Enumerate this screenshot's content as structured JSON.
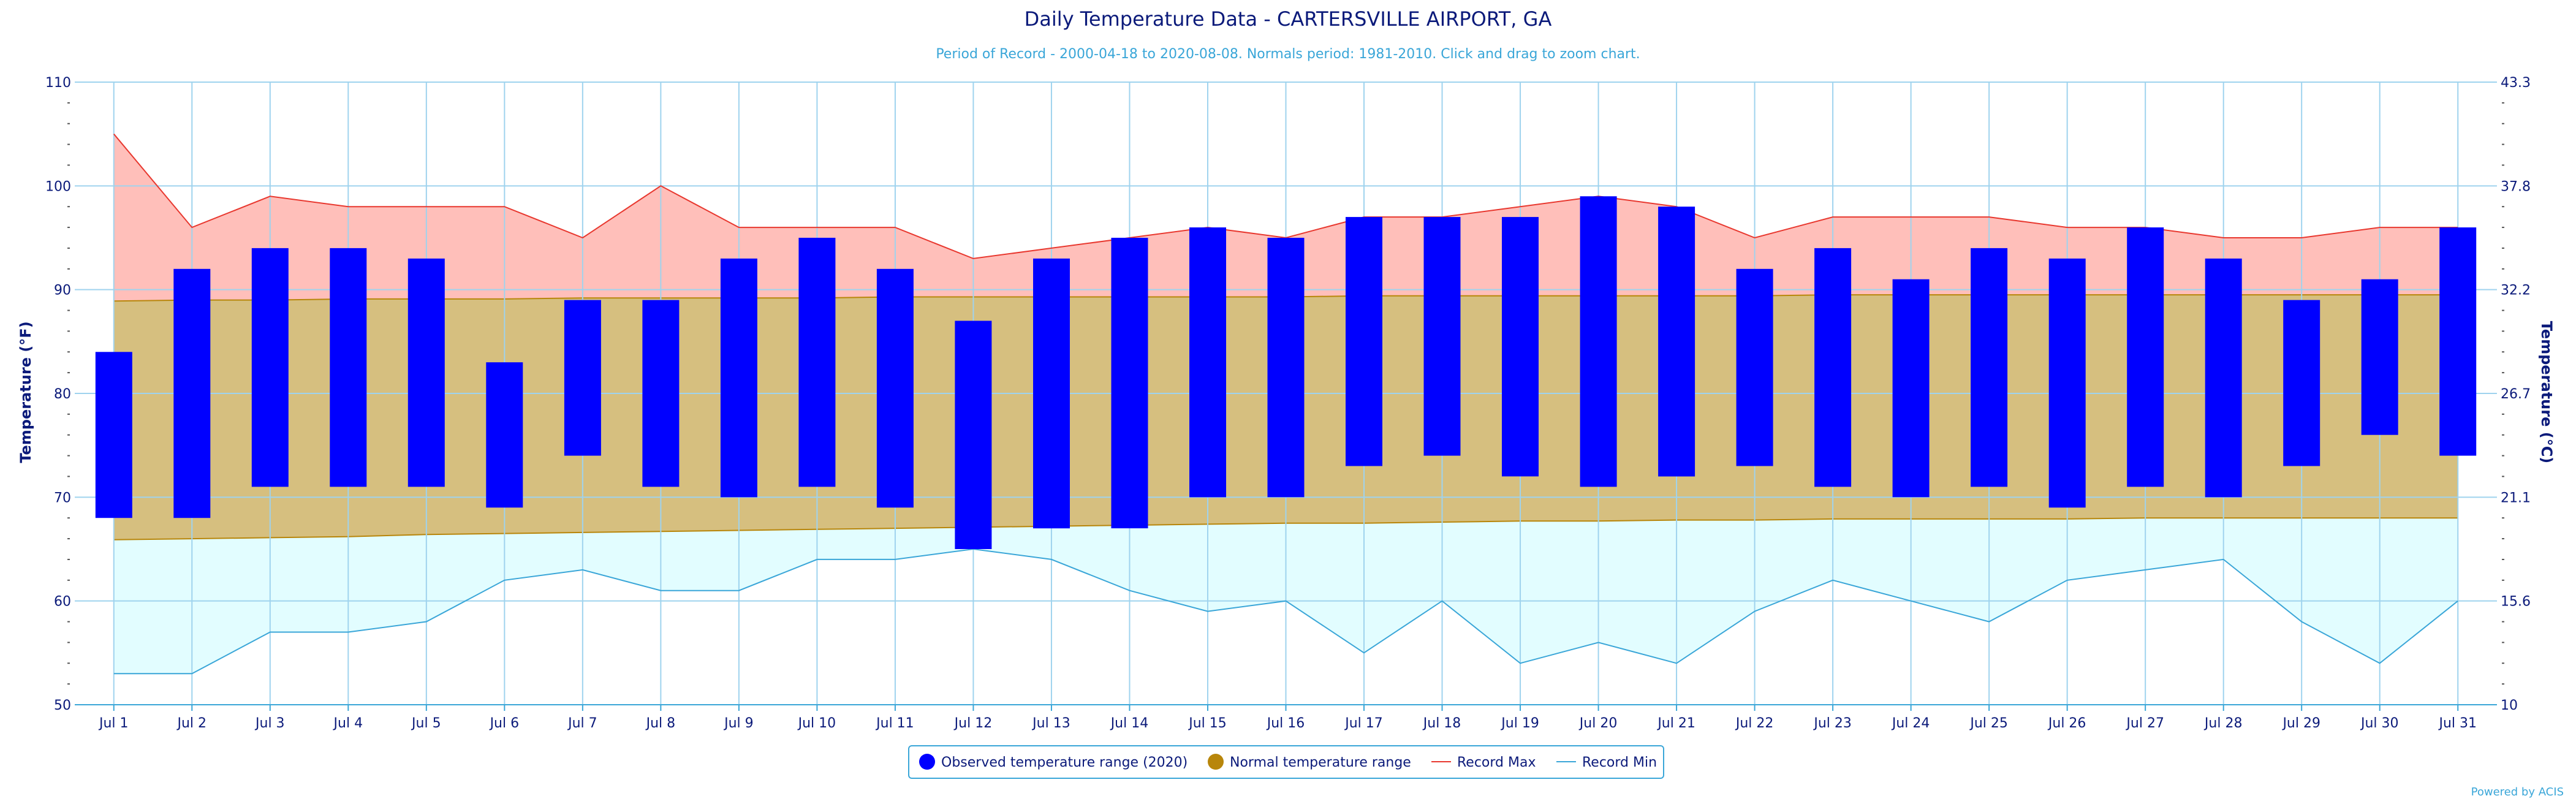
{
  "chart_data": {
    "type": "bar",
    "title": "Daily Temperature Data - CARTERSVILLE AIRPORT, GA",
    "subtitle": "Period of Record - 2000-04-18 to 2020-08-08. Normals period: 1981-2010. Click and drag to zoom chart.",
    "ylabel": "Temperature (°F)",
    "ylabel_right": "Temperature (°C)",
    "ylim": [
      50,
      110
    ],
    "yticks": [
      50,
      60,
      70,
      80,
      90,
      100,
      110
    ],
    "yticks_right": [
      "10",
      "15.6",
      "21.1",
      "26.7",
      "32.2",
      "37.8",
      "43.3"
    ],
    "categories": [
      "Jul 1",
      "Jul 2",
      "Jul 3",
      "Jul 4",
      "Jul 5",
      "Jul 6",
      "Jul 7",
      "Jul 8",
      "Jul 9",
      "Jul 10",
      "Jul 11",
      "Jul 12",
      "Jul 13",
      "Jul 14",
      "Jul 15",
      "Jul 16",
      "Jul 17",
      "Jul 18",
      "Jul 19",
      "Jul 20",
      "Jul 21",
      "Jul 22",
      "Jul 23",
      "Jul 24",
      "Jul 25",
      "Jul 26",
      "Jul 27",
      "Jul 28",
      "Jul 29",
      "Jul 30",
      "Jul 31"
    ],
    "series": [
      {
        "name": "Observed temperature range (2020)",
        "type": "range-bar",
        "color": "#0000ff",
        "low": [
          68,
          68,
          71,
          71,
          71,
          69,
          74,
          71,
          70,
          71,
          69,
          65,
          67,
          67,
          70,
          70,
          73,
          74,
          72,
          71,
          72,
          73,
          71,
          70,
          71,
          69,
          71,
          70,
          73,
          76,
          74
        ],
        "high": [
          84,
          92,
          94,
          94,
          93,
          83,
          89,
          89,
          93,
          95,
          92,
          87,
          93,
          95,
          96,
          95,
          97,
          97,
          97,
          99,
          98,
          92,
          94,
          91,
          94,
          93,
          96,
          93,
          89,
          91,
          96
        ]
      },
      {
        "name": "Normal temperature range",
        "type": "area-range",
        "color": "#d6bf7f",
        "marker_color": "#b8860b",
        "low": [
          65.9,
          66.0,
          66.1,
          66.2,
          66.4,
          66.5,
          66.6,
          66.7,
          66.8,
          66.9,
          67.0,
          67.1,
          67.2,
          67.3,
          67.4,
          67.5,
          67.5,
          67.6,
          67.7,
          67.7,
          67.8,
          67.8,
          67.9,
          67.9,
          67.9,
          67.9,
          68.0,
          68.0,
          68.0,
          68.0,
          68.0
        ],
        "high": [
          88.9,
          89.0,
          89.0,
          89.1,
          89.1,
          89.1,
          89.2,
          89.2,
          89.2,
          89.2,
          89.3,
          89.3,
          89.3,
          89.3,
          89.3,
          89.3,
          89.4,
          89.4,
          89.4,
          89.4,
          89.4,
          89.4,
          89.5,
          89.5,
          89.5,
          89.5,
          89.5,
          89.5,
          89.5,
          89.5,
          89.5
        ]
      },
      {
        "name": "Record Max",
        "type": "area-line",
        "color": "#e8382f",
        "fill": "#ffbfba",
        "values": [
          105,
          96,
          99,
          98,
          98,
          98,
          95,
          100,
          96,
          96,
          96,
          93,
          94,
          95,
          96,
          95,
          97,
          97,
          98,
          99,
          98,
          95,
          97,
          97,
          97,
          96,
          96,
          95,
          95,
          96,
          96
        ]
      },
      {
        "name": "Record Min",
        "type": "area-line",
        "color": "#3aa6d8",
        "fill": "#e2fdff",
        "values": [
          53,
          53,
          57,
          57,
          58,
          62,
          63,
          61,
          61,
          64,
          64,
          65,
          64,
          61,
          59,
          60,
          55,
          60,
          54,
          56,
          54,
          59,
          62,
          60,
          58,
          62,
          63,
          64,
          58,
          54,
          60
        ]
      }
    ],
    "legend_position": "bottom-center",
    "grid": true,
    "credit": "Powered by ACIS"
  }
}
